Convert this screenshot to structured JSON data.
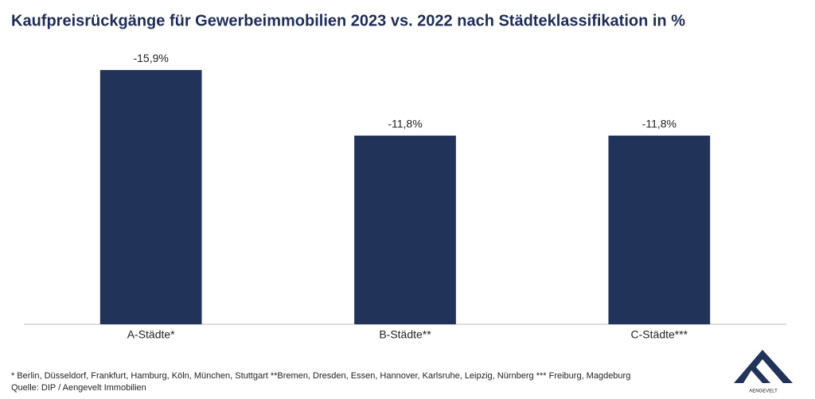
{
  "chart_data": {
    "type": "bar",
    "title": "Kaufpreisrückgänge für Gewerbeimmobilien 2023 vs. 2022 nach Städteklassifikation in %",
    "categories": [
      "A-Städte*",
      "B-Städte**",
      "C-Städte***"
    ],
    "values": [
      -15.9,
      -11.8,
      -11.8
    ],
    "value_labels": [
      "-15,9%",
      "-11,8%",
      "-11,8%"
    ],
    "color": "#22335a",
    "ylim": [
      0,
      -17
    ],
    "footnote": "* Berlin, Düsseldorf, Frankfurt, Hamburg, Köln, München, Stuttgart  **Bremen, Dresden, Essen, Hannover, Karlsruhe, Leipzig, Nürnberg *** Freiburg, Magdeburg",
    "source": "Quelle: DIP / Aengevelt Immobilien",
    "logo_text": "AENGEVELT"
  }
}
